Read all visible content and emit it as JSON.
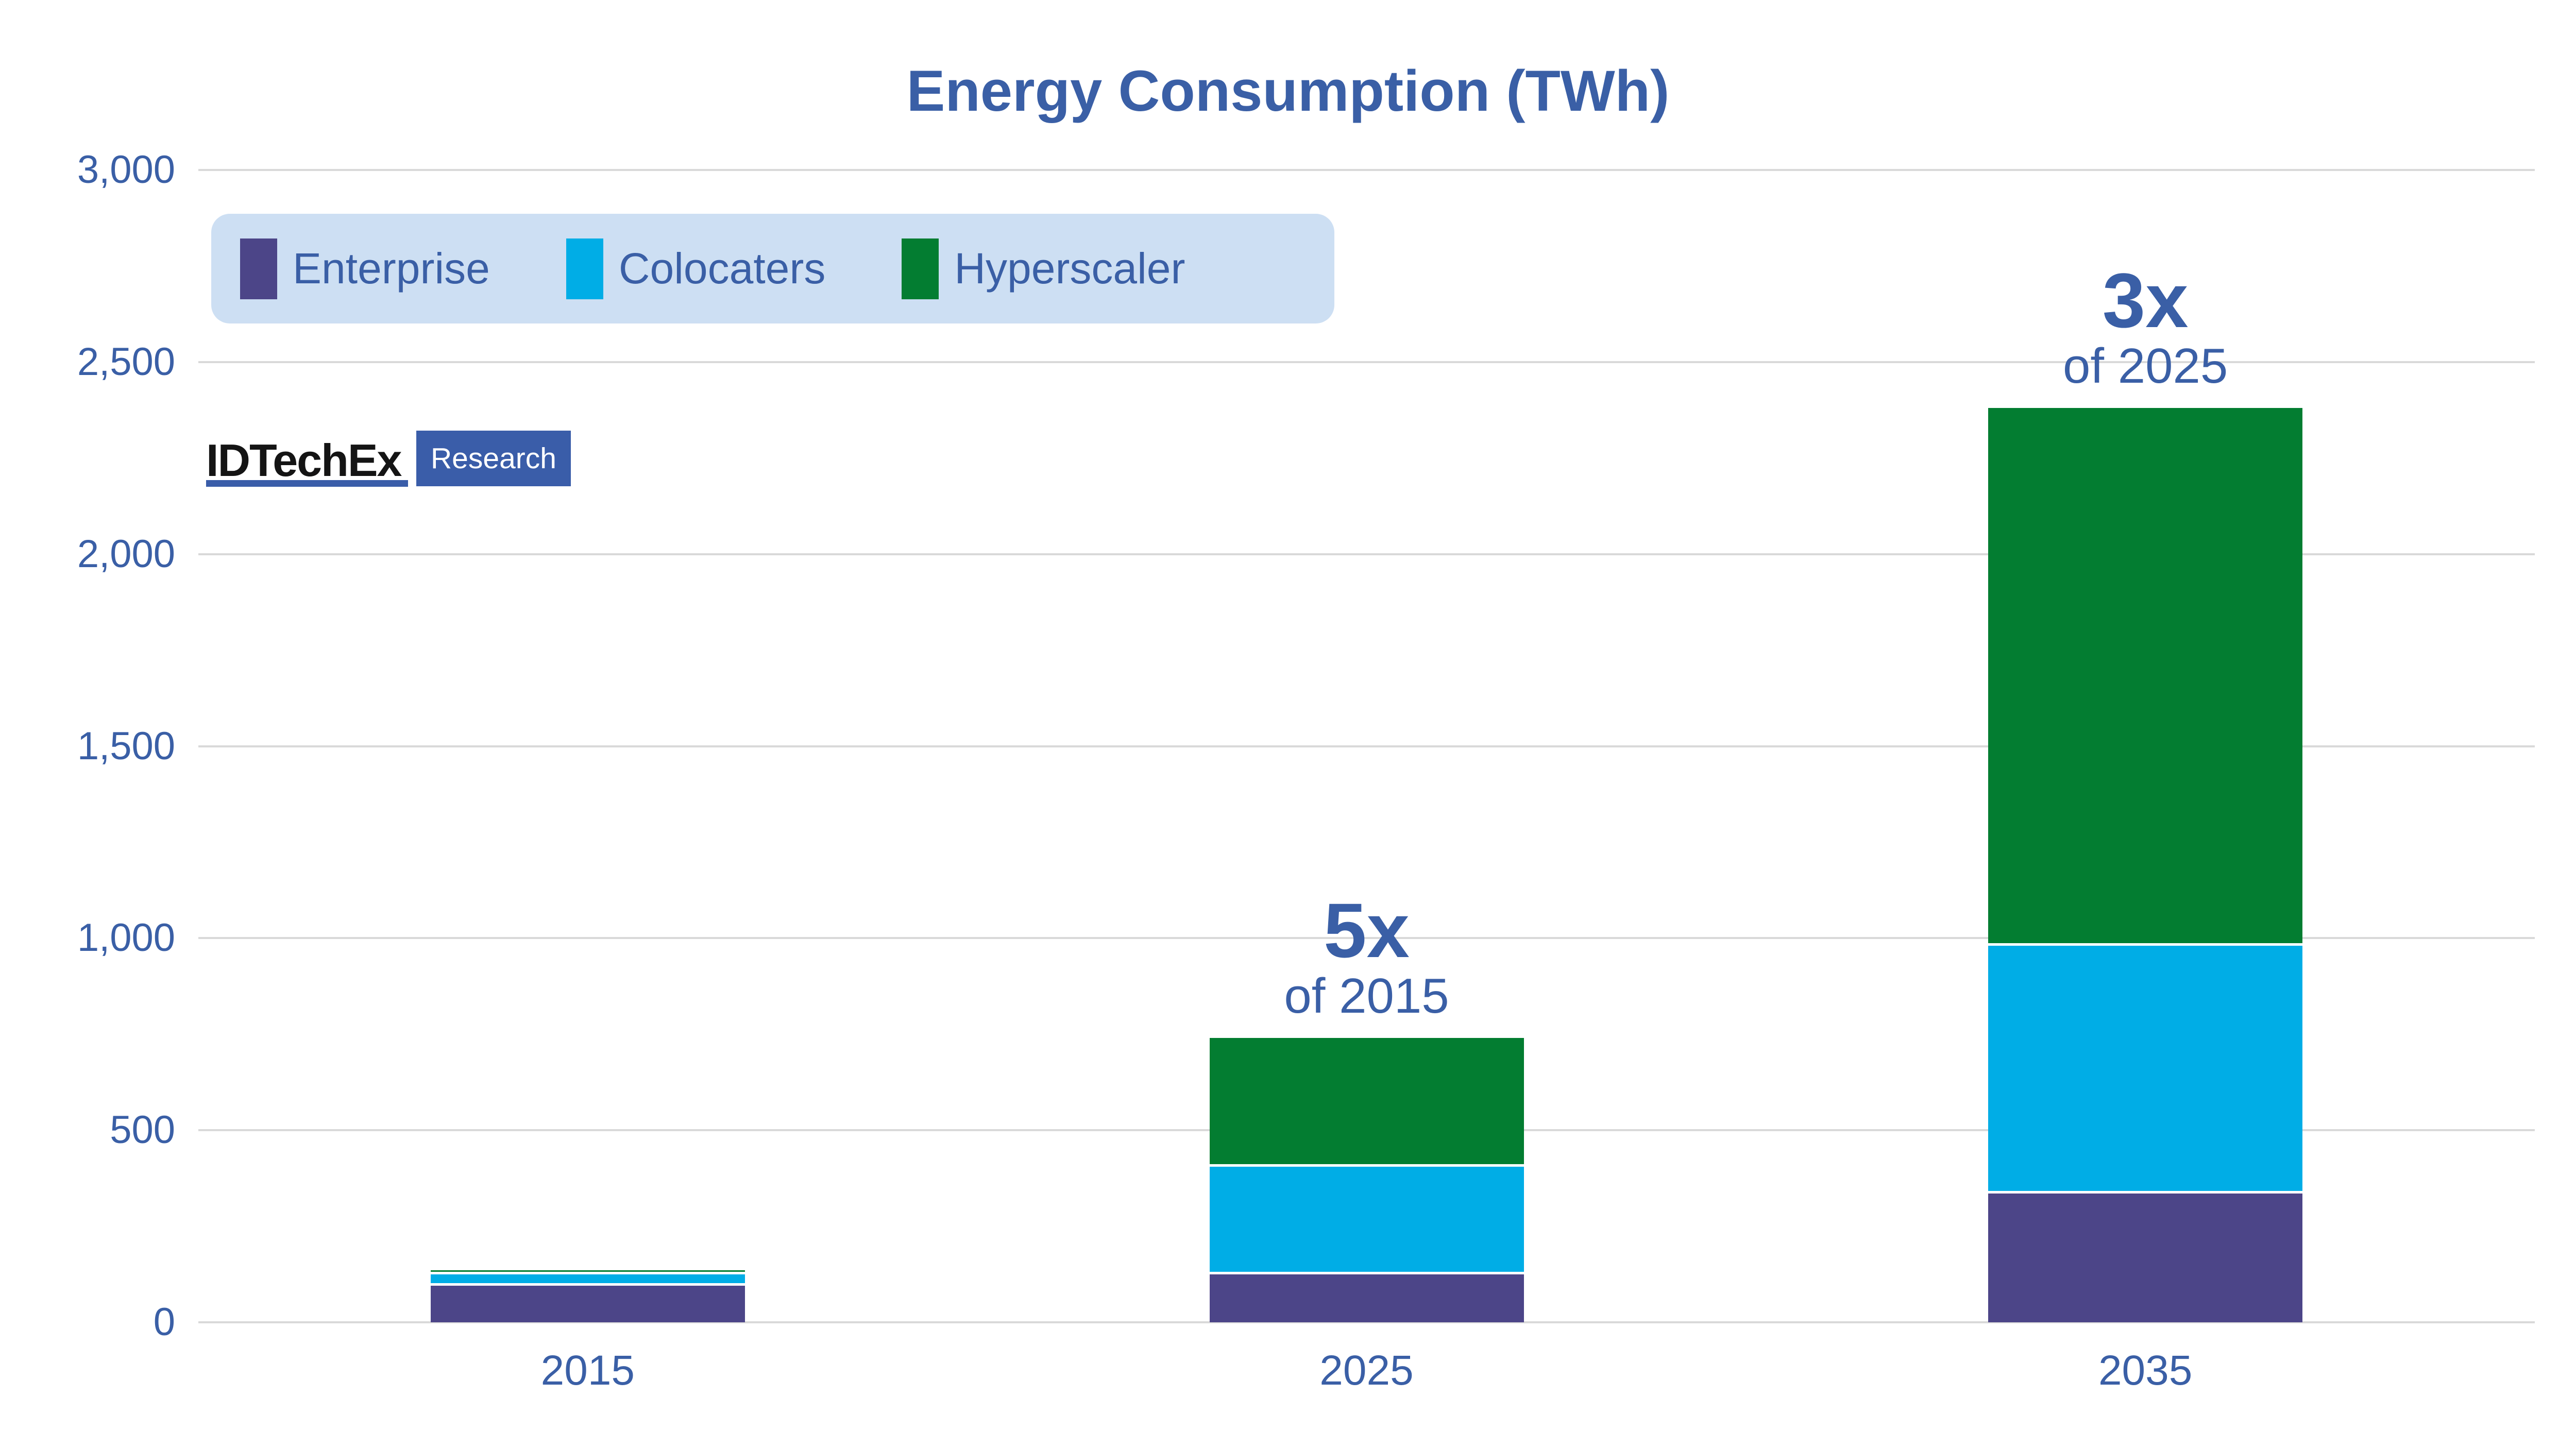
{
  "title": "Energy Consumption (TWh)",
  "logo": {
    "brand": "IDTechEx",
    "badge": "Research"
  },
  "legend": {
    "position": "top-left",
    "background": "#CDDFF3",
    "items": [
      {
        "label": "Enterprise",
        "color": "#4C4588"
      },
      {
        "label": "Colocaters",
        "color": "#00ADE6"
      },
      {
        "label": "Hyperscaler",
        "color": "#037D31"
      }
    ]
  },
  "colors": {
    "text_blue": "#3A5FA6",
    "gridline": "#D9D9D9",
    "logo_blue": "#3A5DA9",
    "background": "#FFFFFF"
  },
  "chart_data": {
    "type": "bar",
    "stacked": true,
    "title": "Energy Consumption (TWh)",
    "xlabel": "",
    "ylabel": "",
    "categories": [
      "2015",
      "2025",
      "2035"
    ],
    "series": [
      {
        "name": "Enterprise",
        "color": "#4C4588",
        "values": [
          95,
          125,
          335
        ]
      },
      {
        "name": "Colocaters",
        "color": "#00ADE6",
        "values": [
          30,
          280,
          645
        ]
      },
      {
        "name": "Hyperscaler",
        "color": "#037D31",
        "values": [
          10,
          335,
          1400
        ]
      }
    ],
    "totals": [
      135,
      740,
      2380
    ],
    "ylim": [
      0,
      3000
    ],
    "ytick_values": [
      0,
      500,
      1000,
      1500,
      2000,
      2500,
      3000
    ],
    "ytick_labels": [
      "0",
      "500",
      "1,000",
      "1,500",
      "2,000",
      "2,500",
      "3,000"
    ],
    "grid": "horizontal",
    "legend_position": "top-left",
    "annotations": [
      {
        "category": "2025",
        "line1": "5x",
        "line2": "of 2015"
      },
      {
        "category": "2035",
        "line1": "3x",
        "line2": "of 2025"
      }
    ]
  }
}
